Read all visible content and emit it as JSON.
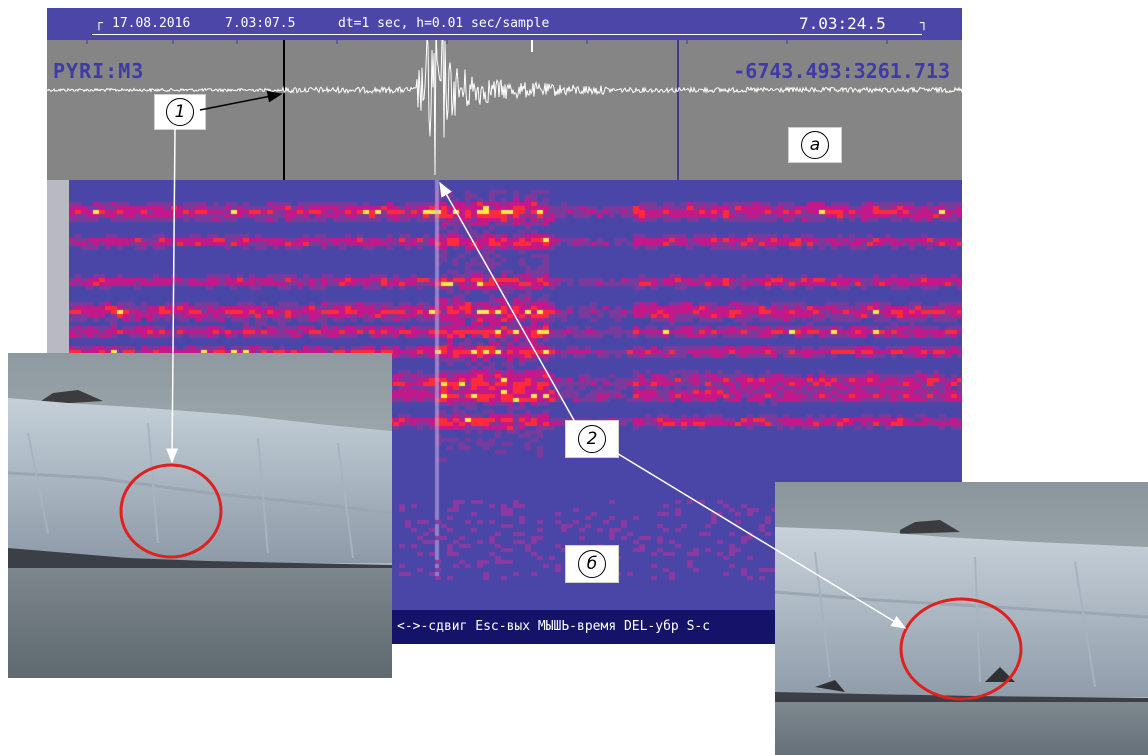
{
  "header": {
    "corner_left": "┌",
    "date": "17.08.2016",
    "start_time": "7.03:07.5",
    "params": "dt=1 sec, h=0.01 sec/sample",
    "end_time": "7.03:24.5",
    "corner_right": "┐"
  },
  "wave_panel": {
    "station": "PYRI:M3",
    "coordinates": "-6743.493:3261.713"
  },
  "status_bar": {
    "text": "<->-сдвиг Esc-вых МЫШЬ-время DEL-убр S-с"
  },
  "callouts": {
    "one": "1",
    "a": "a",
    "two": "2",
    "b": "б"
  },
  "colors": {
    "window_bg": "#4a46a8",
    "wave_panel_bg": "#858585",
    "label_color": "#3f3aa6",
    "status_bg": "#15126a",
    "spectro_low": "#4a46a8",
    "spectro_mid": "#c2188a",
    "spectro_high": "#ff2a3a",
    "spectro_peak": "#f6e94a",
    "ellipse": "#e0201c"
  }
}
